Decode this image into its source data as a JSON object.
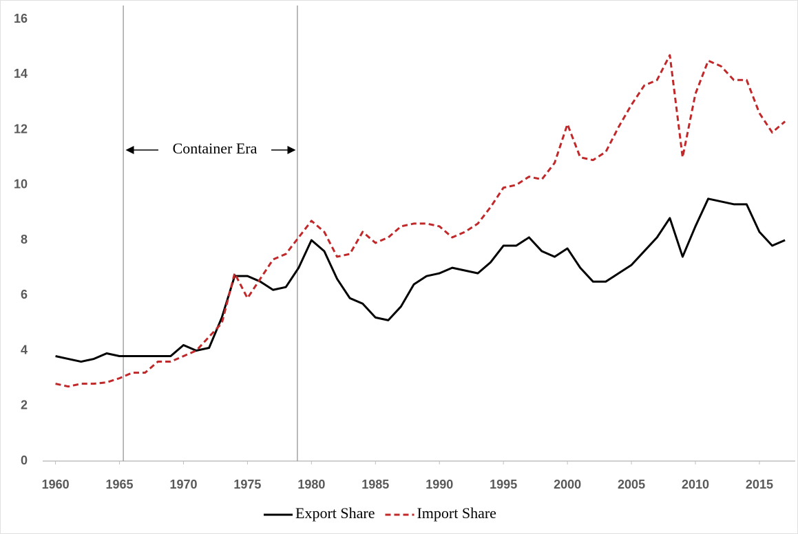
{
  "chart_data": {
    "type": "line",
    "annotation": "Container Era",
    "vlines": [
      1965.3,
      1978.9
    ],
    "x": [
      1960,
      1961,
      1962,
      1963,
      1964,
      1965,
      1966,
      1967,
      1968,
      1969,
      1970,
      1971,
      1972,
      1973,
      1974,
      1975,
      1976,
      1977,
      1978,
      1979,
      1980,
      1981,
      1982,
      1983,
      1984,
      1985,
      1986,
      1987,
      1988,
      1989,
      1990,
      1991,
      1992,
      1993,
      1994,
      1995,
      1996,
      1997,
      1998,
      1999,
      2000,
      2001,
      2002,
      2003,
      2004,
      2005,
      2006,
      2007,
      2008,
      2009,
      2010,
      2011,
      2012,
      2013,
      2014,
      2015,
      2016,
      2017
    ],
    "series": [
      {
        "name": "Export Share",
        "color": "#000000",
        "dash": false,
        "values": [
          3.8,
          3.7,
          3.6,
          3.7,
          3.9,
          3.8,
          3.8,
          3.8,
          3.8,
          3.8,
          4.2,
          4.0,
          4.1,
          5.2,
          6.7,
          6.7,
          6.5,
          6.2,
          6.3,
          7.0,
          8.0,
          7.6,
          6.6,
          5.9,
          5.7,
          5.2,
          5.1,
          5.6,
          6.4,
          6.7,
          6.8,
          7.0,
          6.9,
          6.8,
          7.2,
          7.8,
          7.8,
          8.1,
          7.6,
          7.4,
          7.7,
          7.0,
          6.5,
          6.5,
          6.8,
          7.1,
          7.6,
          8.1,
          8.8,
          7.4,
          8.5,
          9.5,
          9.4,
          9.3,
          9.3,
          8.3,
          7.8,
          8.0
        ]
      },
      {
        "name": "Import Share",
        "color": "#c0282a",
        "dash": true,
        "values": [
          2.8,
          2.7,
          2.8,
          2.8,
          2.85,
          3.0,
          3.2,
          3.2,
          3.6,
          3.6,
          3.8,
          4.0,
          4.5,
          5.0,
          6.8,
          5.9,
          6.6,
          7.3,
          7.5,
          8.1,
          8.7,
          8.3,
          7.4,
          7.5,
          8.3,
          7.9,
          8.1,
          8.5,
          8.6,
          8.6,
          8.5,
          8.1,
          8.3,
          8.6,
          9.2,
          9.9,
          10.0,
          10.3,
          10.2,
          10.8,
          12.2,
          11.0,
          10.9,
          11.2,
          12.1,
          12.9,
          13.6,
          13.8,
          14.7,
          11.0,
          13.3,
          14.5,
          14.3,
          13.8,
          13.8,
          12.6,
          11.9,
          12.3
        ]
      }
    ],
    "xlim": [
      1959,
      2017.8
    ],
    "xticks": [
      1960,
      1965,
      1970,
      1975,
      1980,
      1985,
      1990,
      1995,
      2000,
      2005,
      2010,
      2015
    ],
    "ylim": [
      0,
      16
    ],
    "yticks": [
      0,
      2,
      4,
      6,
      8,
      10,
      12,
      14,
      16
    ],
    "grid": false,
    "legend": "bottom"
  }
}
